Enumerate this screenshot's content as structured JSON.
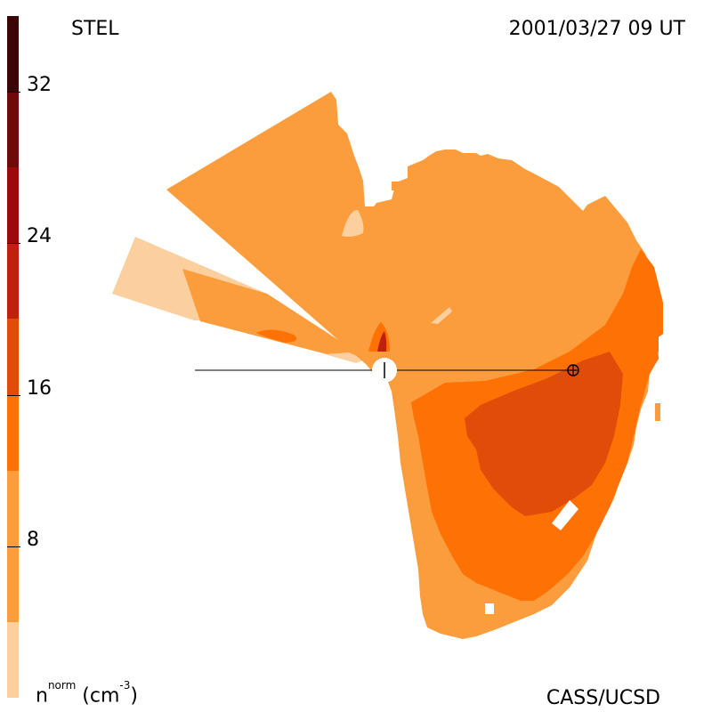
{
  "header": {
    "observatory": "STEL",
    "datetime": "2001/03/27 09 UT"
  },
  "footer": {
    "unit_base": "n",
    "unit_super": "norm",
    "unit_rest": " (cm",
    "unit_exp": "-3",
    "unit_close": ")",
    "credit": "CASS/UCSD"
  },
  "colorbar": {
    "min": 0,
    "max": 36,
    "tick_labels": [
      "8",
      "16",
      "24",
      "32"
    ],
    "tick_values": [
      8,
      16,
      24,
      32
    ],
    "bands": [
      {
        "from": 0,
        "to": 4,
        "color": "#fbd09e"
      },
      {
        "from": 4,
        "to": 12,
        "color": "#fb9d3c"
      },
      {
        "from": 12,
        "to": 16,
        "color": "#fe7205"
      },
      {
        "from": 16,
        "to": 20,
        "color": "#e14c08"
      },
      {
        "from": 20,
        "to": 24,
        "color": "#c0200e"
      },
      {
        "from": 24,
        "to": 28,
        "color": "#9b090c"
      },
      {
        "from": 28,
        "to": 32,
        "color": "#6f0a0a"
      },
      {
        "from": 32,
        "to": 36,
        "color": "#3a0606"
      }
    ]
  },
  "map": {
    "colors": {
      "low": "#fbd09e",
      "base": "#fb9d3c",
      "mid": "#fe7205",
      "high": "#e14c08",
      "peak": "#c0200e"
    },
    "sun_symbol": "sun-icon",
    "earth_symbol": "earth-icon"
  }
}
